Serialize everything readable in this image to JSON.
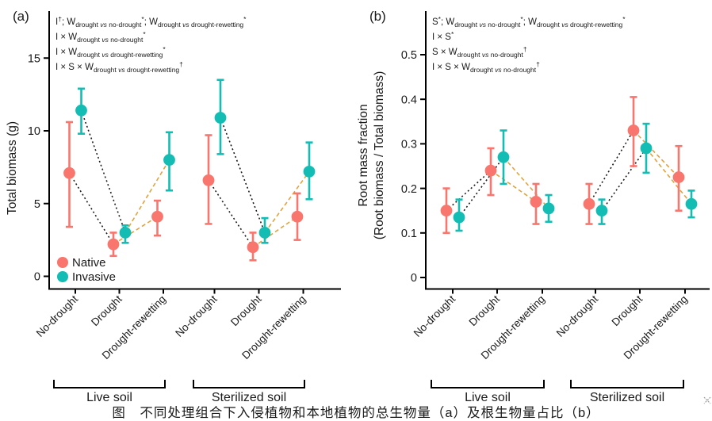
{
  "caption": "图　不同处理组合下入侵植物和本地植物的总生物量（a）及根生物量占比（b）",
  "colors": {
    "native": "#F8766D",
    "invasive": "#13BDB4",
    "connector_nodrought_drought": "#1b1b1b",
    "connector_drought_rewetting": "#E0A33E",
    "axis": "#000000"
  },
  "legend": {
    "items": [
      {
        "label": "Native",
        "key": "native"
      },
      {
        "label": "Invasive",
        "key": "invasive"
      }
    ]
  },
  "soil_groups": [
    "Live soil",
    "Sterilized soil"
  ],
  "categories": [
    "No-drought",
    "Drought",
    "Drought-rewetting"
  ],
  "chart_data": [
    {
      "panel_label": "(a)",
      "type": "scatter",
      "ylabel_lines": [
        "Total biomass (g)"
      ],
      "ytick_labels": [
        "0",
        "5",
        "10",
        "15"
      ],
      "yticks": [
        0,
        5,
        10,
        15
      ],
      "ylim": [
        -0.9,
        18.2
      ],
      "x_categories": [
        "No-drought",
        "Drought",
        "Drought-rewetting",
        "No-drought",
        "Drought",
        "Drought-rewetting"
      ],
      "series": [
        {
          "name": "Native",
          "color_key": "native",
          "mean": [
            7.1,
            2.2,
            4.1,
            6.6,
            2.0,
            4.1
          ],
          "ci_low": [
            3.4,
            1.4,
            2.8,
            3.6,
            1.1,
            2.5
          ],
          "ci_high": [
            10.6,
            3.0,
            5.2,
            9.7,
            3.0,
            5.7
          ]
        },
        {
          "name": "Invasive",
          "color_key": "invasive",
          "mean": [
            11.4,
            3.0,
            8.0,
            10.9,
            3.0,
            7.2
          ],
          "ci_low": [
            9.8,
            2.3,
            5.9,
            8.4,
            2.3,
            5.3
          ],
          "ci_high": [
            12.9,
            3.5,
            9.9,
            13.5,
            4.0,
            9.2
          ]
        }
      ],
      "annotations": [
        [
          [
            "I",
            "n"
          ],
          [
            "†",
            "sup"
          ],
          [
            "; ",
            "n"
          ],
          [
            "W",
            "n"
          ],
          [
            "drought ",
            "sub"
          ],
          [
            "vs",
            "subi"
          ],
          [
            " no-drought",
            "sub"
          ],
          [
            "*",
            "sup"
          ],
          [
            "; ",
            "n"
          ],
          [
            "W",
            "n"
          ],
          [
            "drought ",
            "sub"
          ],
          [
            "vs",
            "subi"
          ],
          [
            " drought-rewetting",
            "sub"
          ],
          [
            "*",
            "sup"
          ]
        ],
        [
          [
            "I × W",
            "n"
          ],
          [
            "drought ",
            "sub"
          ],
          [
            "vs",
            "subi"
          ],
          [
            " no-drought",
            "sub"
          ],
          [
            "*",
            "sup"
          ]
        ],
        [
          [
            "I × W",
            "n"
          ],
          [
            "drought ",
            "sub"
          ],
          [
            "vs",
            "subi"
          ],
          [
            " drought-rewetting",
            "sub"
          ],
          [
            "*",
            "sup"
          ]
        ],
        [
          [
            "I × S × W",
            "n"
          ],
          [
            "drought ",
            "sub"
          ],
          [
            "vs",
            "subi"
          ],
          [
            " drought-rewetting",
            "sub"
          ],
          [
            "†",
            "sup"
          ]
        ]
      ]
    },
    {
      "panel_label": "(b)",
      "type": "scatter",
      "ylabel_lines": [
        "Root mass fraction",
        "(Root biomass / Total biomass)"
      ],
      "ytick_labels": [
        "0",
        "0.1",
        "0.2",
        "0.3",
        "0.4",
        "0.5"
      ],
      "yticks": [
        0,
        0.1,
        0.2,
        0.3,
        0.4,
        0.5
      ],
      "ylim": [
        -0.03,
        0.6
      ],
      "x_categories": [
        "No-drought",
        "Drought",
        "Drought-rewetting",
        "No-drought",
        "Drought",
        "Drought-rewetting"
      ],
      "series": [
        {
          "name": "Native",
          "color_key": "native",
          "mean": [
            0.15,
            0.24,
            0.17,
            0.165,
            0.33,
            0.225
          ],
          "ci_low": [
            0.1,
            0.185,
            0.12,
            0.12,
            0.25,
            0.15
          ],
          "ci_high": [
            0.2,
            0.29,
            0.21,
            0.21,
            0.405,
            0.295
          ]
        },
        {
          "name": "Invasive",
          "color_key": "invasive",
          "mean": [
            0.135,
            0.27,
            0.155,
            0.15,
            0.29,
            0.165
          ],
          "ci_low": [
            0.105,
            0.21,
            0.125,
            0.12,
            0.235,
            0.135
          ],
          "ci_high": [
            0.175,
            0.33,
            0.185,
            0.175,
            0.345,
            0.195
          ]
        }
      ],
      "annotations": [
        [
          [
            "S",
            "n"
          ],
          [
            "*",
            "sup"
          ],
          [
            "; ",
            "n"
          ],
          [
            "W",
            "n"
          ],
          [
            "drought ",
            "sub"
          ],
          [
            "vs",
            "subi"
          ],
          [
            " no-drought",
            "sub"
          ],
          [
            "*",
            "sup"
          ],
          [
            "; ",
            "n"
          ],
          [
            "W",
            "n"
          ],
          [
            "drought ",
            "sub"
          ],
          [
            "vs",
            "subi"
          ],
          [
            " drought-rewetting",
            "sub"
          ],
          [
            "*",
            "sup"
          ]
        ],
        [
          [
            "I × S",
            "n"
          ],
          [
            "*",
            "sup"
          ]
        ],
        [
          [
            "S × W",
            "n"
          ],
          [
            "drought ",
            "sub"
          ],
          [
            "vs",
            "subi"
          ],
          [
            " no-drought",
            "sub"
          ],
          [
            "†",
            "sup"
          ]
        ],
        [
          [
            "I × S × W",
            "n"
          ],
          [
            "drought ",
            "sub"
          ],
          [
            "vs",
            "subi"
          ],
          [
            " no-drought",
            "sub"
          ],
          [
            "†",
            "sup"
          ]
        ]
      ]
    }
  ]
}
